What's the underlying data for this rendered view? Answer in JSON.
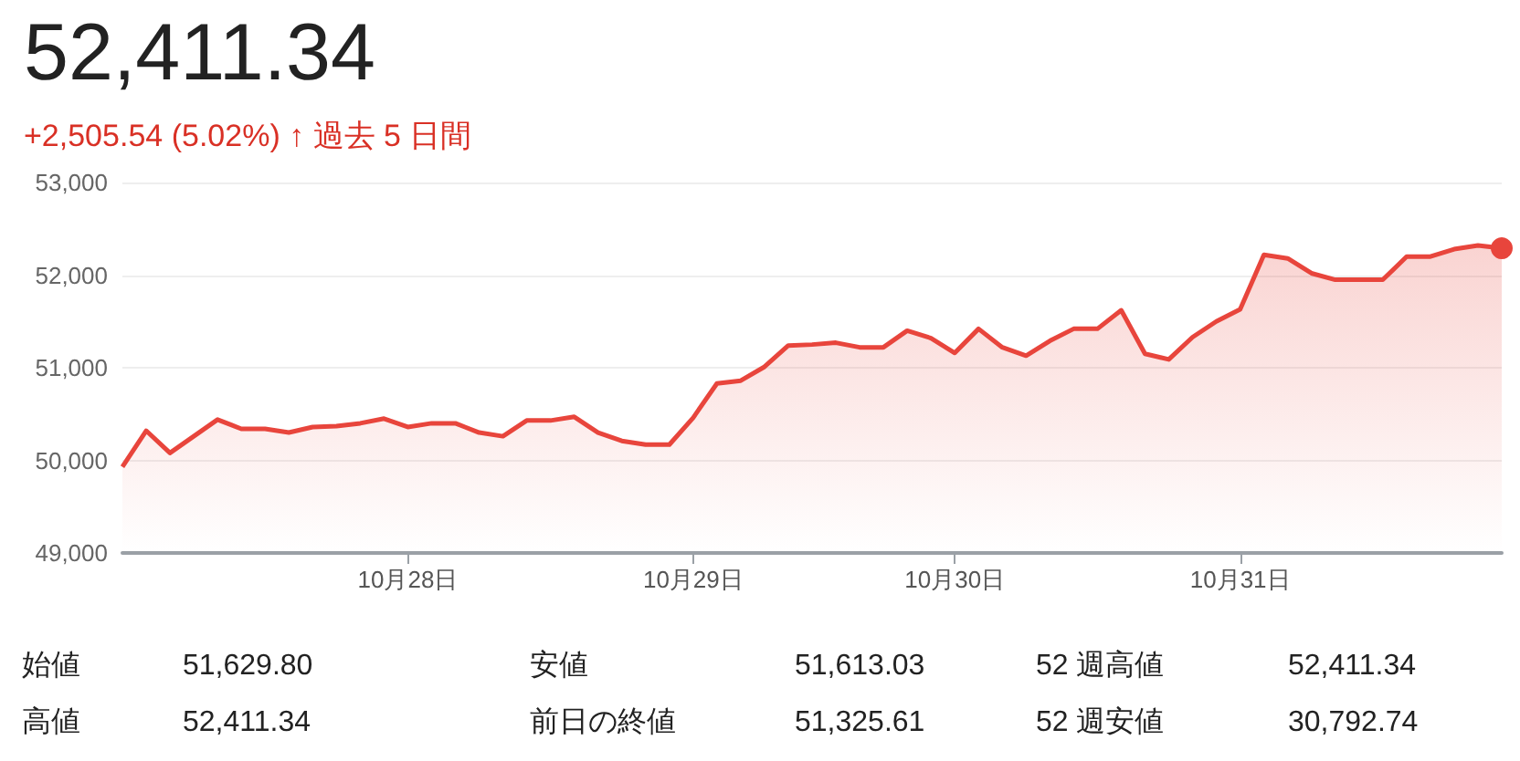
{
  "chart_data": {
    "type": "area",
    "title": "52,411.34",
    "subtitle": "+2,505.54 (5.02%) ↑ 過去 5 日間",
    "categories": [
      null,
      null,
      null,
      null,
      null,
      null,
      null,
      null,
      null,
      null,
      null,
      null,
      "10月28日",
      null,
      null,
      null,
      null,
      null,
      null,
      null,
      null,
      null,
      null,
      null,
      "10月29日",
      null,
      null,
      null,
      null,
      null,
      null,
      null,
      null,
      null,
      null,
      "10月30日",
      null,
      null,
      null,
      null,
      null,
      null,
      null,
      null,
      null,
      null,
      null,
      "10月31日",
      null,
      null,
      null,
      null,
      null,
      null,
      null,
      null,
      null,
      null,
      null
    ],
    "series": [
      {
        "color": "#e8453c",
        "values": [
          49930,
          50320,
          50080,
          50260,
          50440,
          50340,
          50340,
          50300,
          50360,
          50370,
          50400,
          50450,
          50360,
          50400,
          50400,
          50300,
          50260,
          50430,
          50430,
          50470,
          50300,
          50210,
          50170,
          50170,
          50460,
          50830,
          50860,
          51010,
          51240,
          51250,
          51270,
          51220,
          51220,
          51400,
          51320,
          51160,
          51420,
          51220,
          51130,
          51290,
          51420,
          51420,
          51620,
          51150,
          51090,
          51330,
          51500,
          51630,
          52220,
          52180,
          52020,
          51950,
          51950,
          51950,
          52200,
          52200,
          52280,
          52320,
          52290
        ]
      }
    ],
    "ylim": [
      49000,
      53000
    ],
    "yticks": [
      {
        "value": 49000,
        "label": "49,000"
      },
      {
        "value": 50000,
        "label": "50,000"
      },
      {
        "value": 51000,
        "label": "51,000"
      },
      {
        "value": 52000,
        "label": "52,000"
      },
      {
        "value": 53000,
        "label": "53,000"
      }
    ],
    "grid": "y",
    "marker": "none",
    "line_style": "solid",
    "annotations": [
      "始値",
      "51,629.80",
      "安値",
      "51,613.03",
      "52 週高値",
      "52,411.34",
      "高値",
      "52,411.34",
      "前日の終値",
      "51,325.61",
      "52 週安値",
      "30,792.74"
    ]
  }
}
